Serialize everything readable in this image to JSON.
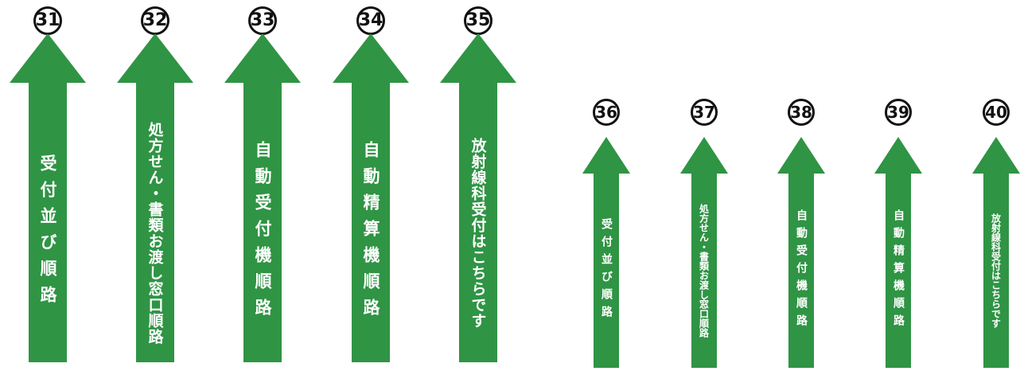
{
  "colors": {
    "arrow": "#2f9444",
    "text": "#ffffff",
    "number": "#111111"
  },
  "rows": [
    {
      "size": "large",
      "signs": [
        {
          "number": "31",
          "label": "受付並び順路",
          "spacing": "wide"
        },
        {
          "number": "32",
          "label": "処方せん・書類お渡し窓口順路",
          "spacing": "tight"
        },
        {
          "number": "33",
          "label": "自動受付機順路",
          "spacing": "wide"
        },
        {
          "number": "34",
          "label": "自動精算機順路",
          "spacing": "wide"
        },
        {
          "number": "35",
          "label": "放射線科受付はこちらです",
          "spacing": "tight"
        }
      ]
    },
    {
      "size": "small",
      "signs": [
        {
          "number": "36",
          "label": "受付並び順路",
          "spacing": "wide"
        },
        {
          "number": "37",
          "label": "処方せん・書類お渡し窓口順路",
          "spacing": "tight"
        },
        {
          "number": "38",
          "label": "自動受付機順路",
          "spacing": "wide"
        },
        {
          "number": "39",
          "label": "自動精算機順路",
          "spacing": "wide"
        },
        {
          "number": "40",
          "label": "放射線科受付はこちらです",
          "spacing": "tight"
        }
      ]
    }
  ]
}
